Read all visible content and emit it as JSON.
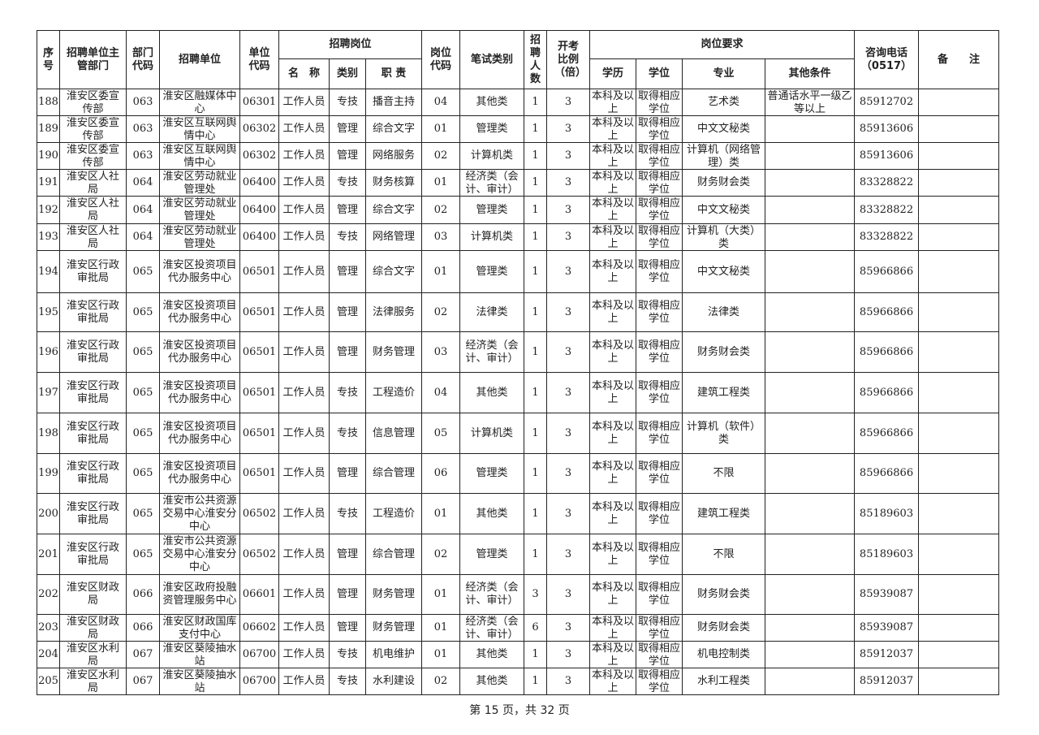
{
  "header": {
    "seq": "序号",
    "dept": "招聘单位主管部门",
    "dept_code": "部门代码",
    "unit": "招聘单位",
    "unit_code": "单位代码",
    "position_group": "招聘岗位",
    "name": "名　称",
    "type": "类别",
    "duty": "职 责",
    "pos_code": "岗位代码",
    "exam": "笔试类别",
    "count": "招聘人数",
    "ratio": "开考比例（倍）",
    "req_group": "岗位要求",
    "edu": "学历",
    "degree": "学位",
    "major": "专业",
    "other": "其他条件",
    "phone": "咨询电话（0517）",
    "remark": "备　　注"
  },
  "rows": [
    [
      "188",
      "淮安区委宣传部",
      "063",
      "淮安区融媒体中心",
      "06301",
      "工作人员",
      "专技",
      "播音主持",
      "04",
      "其他类",
      "1",
      "3",
      "本科及以上",
      "取得相应学位",
      "艺术类",
      "普通话水平一级乙等以上",
      "85912702",
      ""
    ],
    [
      "189",
      "淮安区委宣传部",
      "063",
      "淮安区互联网舆情中心",
      "06302",
      "工作人员",
      "管理",
      "综合文字",
      "01",
      "管理类",
      "1",
      "3",
      "本科及以上",
      "取得相应学位",
      "中文文秘类",
      "",
      "85913606",
      ""
    ],
    [
      "190",
      "淮安区委宣传部",
      "063",
      "淮安区互联网舆情中心",
      "06302",
      "工作人员",
      "管理",
      "网络服务",
      "02",
      "计算机类",
      "1",
      "3",
      "本科及以上",
      "取得相应学位",
      "计算机（网络管理）类",
      "",
      "85913606",
      ""
    ],
    [
      "191",
      "淮安区人社局",
      "064",
      "淮安区劳动就业管理处",
      "06400",
      "工作人员",
      "专技",
      "财务核算",
      "01",
      "经济类（会计、审计）",
      "1",
      "3",
      "本科及以上",
      "取得相应学位",
      "财务财会类",
      "",
      "83328822",
      ""
    ],
    [
      "192",
      "淮安区人社局",
      "064",
      "淮安区劳动就业管理处",
      "06400",
      "工作人员",
      "管理",
      "综合文字",
      "02",
      "管理类",
      "1",
      "3",
      "本科及以上",
      "取得相应学位",
      "中文文秘类",
      "",
      "83328822",
      ""
    ],
    [
      "193",
      "淮安区人社局",
      "064",
      "淮安区劳动就业管理处",
      "06400",
      "工作人员",
      "专技",
      "网络管理",
      "03",
      "计算机类",
      "1",
      "3",
      "本科及以上",
      "取得相应学位",
      "计算机（大类）类",
      "",
      "83328822",
      ""
    ],
    [
      "194",
      "淮安区行政审批局",
      "065",
      "淮安区投资项目代办服务中心",
      "06501",
      "工作人员",
      "管理",
      "综合文字",
      "01",
      "管理类",
      "1",
      "3",
      "本科及以上",
      "取得相应学位",
      "中文文秘类",
      "",
      "85966866",
      ""
    ],
    [
      "195",
      "淮安区行政审批局",
      "065",
      "淮安区投资项目代办服务中心",
      "06501",
      "工作人员",
      "管理",
      "法律服务",
      "02",
      "法律类",
      "1",
      "3",
      "本科及以上",
      "取得相应学位",
      "法律类",
      "",
      "85966866",
      ""
    ],
    [
      "196",
      "淮安区行政审批局",
      "065",
      "淮安区投资项目代办服务中心",
      "06501",
      "工作人员",
      "管理",
      "财务管理",
      "03",
      "经济类（会计、审计）",
      "1",
      "3",
      "本科及以上",
      "取得相应学位",
      "财务财会类",
      "",
      "85966866",
      ""
    ],
    [
      "197",
      "淮安区行政审批局",
      "065",
      "淮安区投资项目代办服务中心",
      "06501",
      "工作人员",
      "专技",
      "工程造价",
      "04",
      "其他类",
      "1",
      "3",
      "本科及以上",
      "取得相应学位",
      "建筑工程类",
      "",
      "85966866",
      ""
    ],
    [
      "198",
      "淮安区行政审批局",
      "065",
      "淮安区投资项目代办服务中心",
      "06501",
      "工作人员",
      "专技",
      "信息管理",
      "05",
      "计算机类",
      "1",
      "3",
      "本科及以上",
      "取得相应学位",
      "计算机（软件）类",
      "",
      "85966866",
      ""
    ],
    [
      "199",
      "淮安区行政审批局",
      "065",
      "淮安区投资项目代办服务中心",
      "06501",
      "工作人员",
      "管理",
      "综合管理",
      "06",
      "管理类",
      "1",
      "3",
      "本科及以上",
      "取得相应学位",
      "不限",
      "",
      "85966866",
      ""
    ],
    [
      "200",
      "淮安区行政审批局",
      "065",
      "淮安市公共资源交易中心淮安分中心",
      "06502",
      "工作人员",
      "专技",
      "工程造价",
      "01",
      "其他类",
      "1",
      "3",
      "本科及以上",
      "取得相应学位",
      "建筑工程类",
      "",
      "85189603",
      ""
    ],
    [
      "201",
      "淮安区行政审批局",
      "065",
      "淮安市公共资源交易中心淮安分中心",
      "06502",
      "工作人员",
      "管理",
      "综合管理",
      "02",
      "管理类",
      "1",
      "3",
      "本科及以上",
      "取得相应学位",
      "不限",
      "",
      "85189603",
      ""
    ],
    [
      "202",
      "淮安区财政局",
      "066",
      "淮安区政府投融资管理服务中心",
      "06601",
      "工作人员",
      "管理",
      "财务管理",
      "01",
      "经济类（会计、审计）",
      "3",
      "3",
      "本科及以上",
      "取得相应学位",
      "财务财会类",
      "",
      "85939087",
      ""
    ],
    [
      "203",
      "淮安区财政局",
      "066",
      "淮安区财政国库支付中心",
      "06602",
      "工作人员",
      "管理",
      "财务管理",
      "01",
      "经济类（会计、审计）",
      "6",
      "3",
      "本科及以上",
      "取得相应学位",
      "财务财会类",
      "",
      "85939087",
      ""
    ],
    [
      "204",
      "淮安区水利局",
      "067",
      "淮安区葵陵抽水站",
      "06700",
      "工作人员",
      "专技",
      "机电维护",
      "01",
      "其他类",
      "1",
      "3",
      "本科及以上",
      "取得相应学位",
      "机电控制类",
      "",
      "85912037",
      ""
    ],
    [
      "205",
      "淮安区水利局",
      "067",
      "淮安区葵陵抽水站",
      "06700",
      "工作人员",
      "专技",
      "水利建设",
      "02",
      "其他类",
      "1",
      "3",
      "本科及以上",
      "取得相应学位",
      "水利工程类",
      "",
      "85912037",
      ""
    ]
  ],
  "footer": "第 15 页，共 32 页"
}
